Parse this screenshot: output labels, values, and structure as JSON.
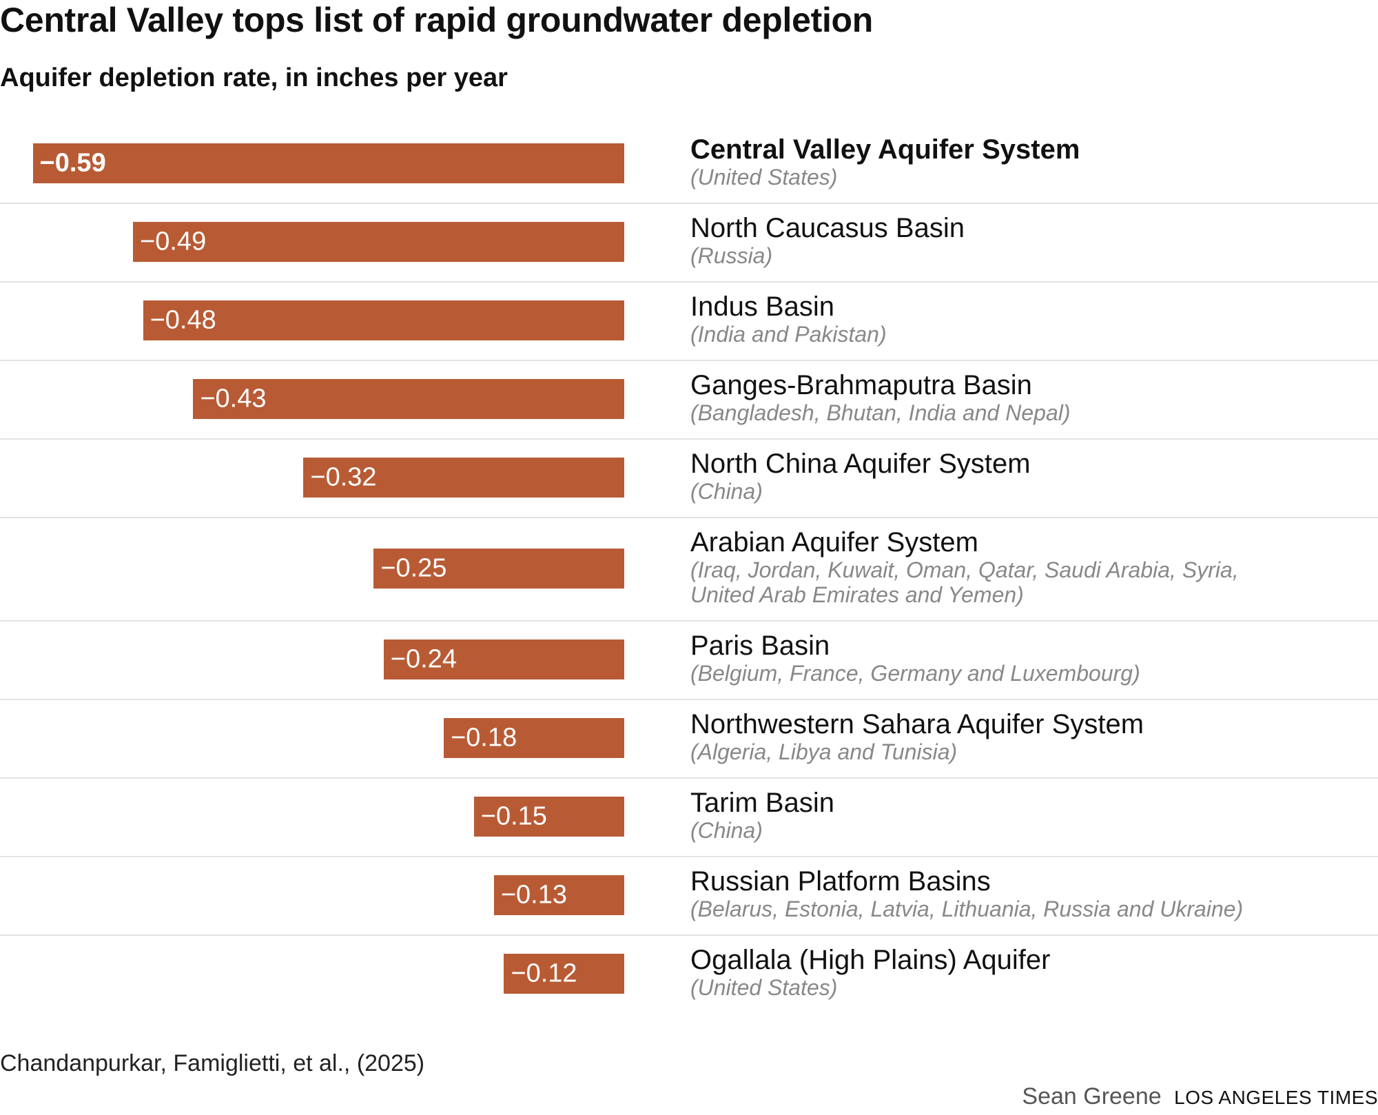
{
  "header": {
    "title": "Central Valley tops list of rapid groundwater depletion",
    "subtitle": "Aquifer depletion rate, in inches per year"
  },
  "chart_data": {
    "type": "bar",
    "orientation": "horizontal",
    "title": "Central Valley tops list of rapid groundwater depletion",
    "subtitle": "Aquifer depletion rate, in inches per year",
    "xlim": [
      -0.62,
      0
    ],
    "categories": [
      "Central Valley Aquifer System",
      "North Caucasus Basin",
      "Indus Basin",
      "Ganges-Brahmaputra Basin",
      "North China Aquifer System",
      "Arabian Aquifer System",
      "Paris Basin",
      "Northwestern Sahara Aquifer System",
      "Tarim Basin",
      "Russian Platform Basins",
      "Ogallala (High Plains) Aquifer"
    ],
    "values": [
      -0.59,
      -0.49,
      -0.48,
      -0.43,
      -0.32,
      -0.25,
      -0.24,
      -0.18,
      -0.15,
      -0.13,
      -0.12
    ],
    "rows": [
      {
        "name": "Central Valley Aquifer System",
        "countries": "(United States)",
        "value": -0.59,
        "label": "−0.59",
        "highlight": true
      },
      {
        "name": "North Caucasus Basin",
        "countries": "(Russia)",
        "value": -0.49,
        "label": "−0.49",
        "highlight": false
      },
      {
        "name": "Indus Basin",
        "countries": "(India and Pakistan)",
        "value": -0.48,
        "label": "−0.48",
        "highlight": false
      },
      {
        "name": "Ganges-Brahmaputra Basin",
        "countries": "(Bangladesh, Bhutan, India and Nepal)",
        "value": -0.43,
        "label": "−0.43",
        "highlight": false
      },
      {
        "name": "North China Aquifer System",
        "countries": "(China)",
        "value": -0.32,
        "label": "−0.32",
        "highlight": false
      },
      {
        "name": "Arabian Aquifer System",
        "countries": [
          "(Iraq, Jordan, Kuwait, Oman, Qatar, Saudi Arabia, Syria,",
          "United Arab Emirates and Yemen)"
        ],
        "value": -0.25,
        "label": "−0.25",
        "highlight": false
      },
      {
        "name": "Paris Basin",
        "countries": "(Belgium, France, Germany and Luxembourg)",
        "value": -0.24,
        "label": "−0.24",
        "highlight": false
      },
      {
        "name": "Northwestern Sahara Aquifer System",
        "countries": "(Algeria, Libya and Tunisia)",
        "value": -0.18,
        "label": "−0.18",
        "highlight": false
      },
      {
        "name": "Tarim Basin",
        "countries": "(China)",
        "value": -0.15,
        "label": "−0.15",
        "highlight": false
      },
      {
        "name": "Russian Platform Basins",
        "countries": "(Belarus, Estonia, Latvia, Lithuania, Russia and Ukraine)",
        "value": -0.13,
        "label": "−0.13",
        "highlight": false
      },
      {
        "name": "Ogallala (High Plains) Aquifer",
        "countries": "(United States)",
        "value": -0.12,
        "label": "−0.12",
        "highlight": false
      }
    ],
    "colors": {
      "bar": "#b85b35",
      "bar_text": "#ffffff",
      "countries": "#888888",
      "divider": "#e3e3e3"
    },
    "grid": false,
    "legend": "none"
  },
  "footer": {
    "source": "Chandanpurkar, Famiglietti, et al., (2025)",
    "author": "Sean Greene",
    "publisher": "LOS ANGELES TIMES"
  }
}
